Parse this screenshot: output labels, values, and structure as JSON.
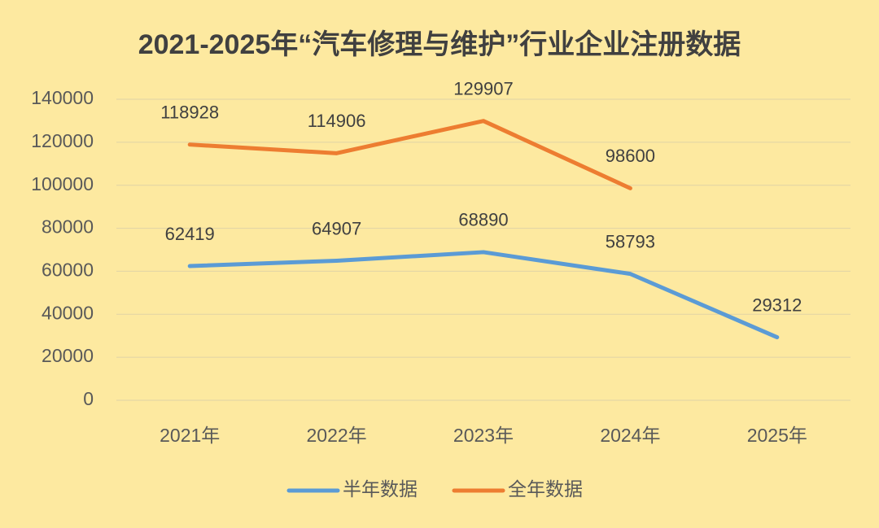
{
  "chart_data": {
    "type": "line",
    "title": "2021-2025年“汽车修理与维护”行业企业注册数据",
    "categories": [
      "2021年",
      "2022年",
      "2023年",
      "2024年",
      "2025年"
    ],
    "series": [
      {
        "name": "半年数据",
        "color": "#5b9bd5",
        "values": [
          62419,
          64907,
          68890,
          58793,
          29312
        ]
      },
      {
        "name": "全年数据",
        "color": "#ed7d31",
        "values": [
          118928,
          114906,
          129907,
          98600,
          null
        ]
      }
    ],
    "ylim": [
      0,
      140000
    ],
    "yticks": [
      0,
      20000,
      40000,
      60000,
      80000,
      100000,
      120000,
      140000
    ],
    "grid": true,
    "legend": "bottom",
    "data_labels": true
  }
}
